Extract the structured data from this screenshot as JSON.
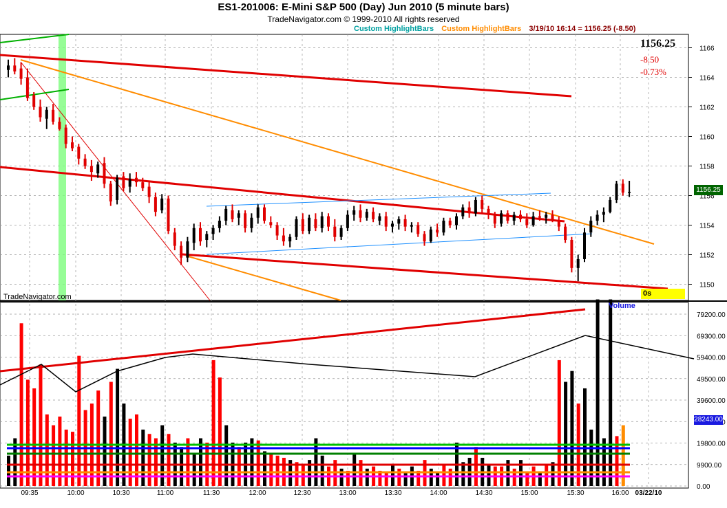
{
  "header": {
    "title": "ES1-201006:  E-Mini S&P 500 (Day) Jun 2010  (5 minute bars)",
    "subtitle": "TradeNavigator.com © 1999-2010 All rights reserved"
  },
  "legend": {
    "item1": "Custom HighlightBars",
    "item2": "Custom HighlightBars",
    "quote": "3/19/10 16:14 = 1156.25 (-8.50)",
    "colors": {
      "item1": "#00a0a0",
      "item2": "#ff8c00",
      "quote": "#8b0000"
    }
  },
  "last": {
    "price": "1156.25",
    "change": "-8.50",
    "percent": "-0.73%"
  },
  "watermark": "TradeNavigator.com",
  "timer": "0s",
  "price_tag": "1156.25",
  "volume_label": "Volume",
  "volume_tag": "28243.00",
  "chart_data": [
    {
      "type": "candlestick",
      "title": "ES1-201006:  E-Mini S&P 500 (Day) Jun 2010  (5 minute bars)",
      "y_ticks": [
        "1166",
        "1164",
        "1162",
        "1160",
        "1158",
        "1156",
        "1154",
        "1152",
        "1150"
      ],
      "ylim": [
        1149,
        1167
      ],
      "x_ticks": [
        "09:35",
        "10:00",
        "10:30",
        "11:00",
        "11:30",
        "12:00",
        "12:30",
        "13:00",
        "13:30",
        "14:00",
        "14:30",
        "15:00",
        "15:30",
        "16:00",
        "03/22/10"
      ],
      "bars": [
        [
          1164.5,
          1165.2,
          1164.0,
          1164.8
        ],
        [
          1164.8,
          1165.3,
          1164.2,
          1164.4
        ],
        [
          1164.6,
          1165.0,
          1163.5,
          1163.9
        ],
        [
          1164.0,
          1164.6,
          1162.4,
          1162.6
        ],
        [
          1162.8,
          1163.0,
          1161.8,
          1162.0
        ],
        [
          1162.0,
          1162.5,
          1161.0,
          1161.3
        ],
        [
          1161.2,
          1162.0,
          1160.5,
          1161.8
        ],
        [
          1161.8,
          1162.2,
          1160.8,
          1161.0
        ],
        [
          1161.0,
          1161.3,
          1160.4,
          1160.5
        ],
        [
          1160.6,
          1160.8,
          1159.2,
          1159.5
        ],
        [
          1159.6,
          1160.0,
          1159.0,
          1159.2
        ],
        [
          1159.3,
          1159.5,
          1158.1,
          1158.5
        ],
        [
          1158.5,
          1158.8,
          1157.8,
          1158.0
        ],
        [
          1158.0,
          1158.4,
          1157.0,
          1157.6
        ],
        [
          1157.5,
          1158.3,
          1157.2,
          1158.1
        ],
        [
          1158.2,
          1158.6,
          1156.5,
          1156.8
        ],
        [
          1156.8,
          1157.0,
          1155.3,
          1155.6
        ],
        [
          1155.7,
          1157.4,
          1155.4,
          1157.2
        ],
        [
          1157.3,
          1157.6,
          1156.3,
          1156.5
        ],
        [
          1156.6,
          1157.5,
          1156.2,
          1157.1
        ],
        [
          1157.2,
          1157.6,
          1156.6,
          1156.9
        ],
        [
          1156.9,
          1157.2,
          1156.3,
          1156.5
        ],
        [
          1156.6,
          1156.9,
          1155.5,
          1155.9
        ],
        [
          1155.9,
          1156.2,
          1154.6,
          1154.9
        ],
        [
          1155.0,
          1156.1,
          1154.8,
          1155.8
        ],
        [
          1155.8,
          1156.0,
          1153.4,
          1153.6
        ],
        [
          1153.5,
          1153.8,
          1152.3,
          1152.6
        ],
        [
          1152.6,
          1152.9,
          1151.3,
          1151.8
        ],
        [
          1151.8,
          1153.2,
          1151.5,
          1152.9
        ],
        [
          1152.8,
          1154.1,
          1152.3,
          1153.8
        ],
        [
          1153.8,
          1154.2,
          1152.6,
          1152.9
        ],
        [
          1153.0,
          1153.6,
          1152.5,
          1153.4
        ],
        [
          1153.4,
          1154.0,
          1153.0,
          1153.8
        ],
        [
          1153.8,
          1154.6,
          1153.5,
          1154.3
        ],
        [
          1154.3,
          1155.3,
          1154.0,
          1155.1
        ],
        [
          1155.0,
          1155.4,
          1154.2,
          1154.4
        ],
        [
          1154.5,
          1155.0,
          1154.0,
          1154.8
        ],
        [
          1154.8,
          1155.0,
          1153.5,
          1153.8
        ],
        [
          1153.8,
          1154.8,
          1153.5,
          1154.5
        ],
        [
          1154.5,
          1155.4,
          1154.1,
          1155.2
        ],
        [
          1155.2,
          1155.4,
          1154.1,
          1154.3
        ],
        [
          1154.2,
          1154.6,
          1153.8,
          1154.0
        ],
        [
          1154.0,
          1154.2,
          1153.0,
          1153.3
        ],
        [
          1153.3,
          1153.8,
          1152.6,
          1152.9
        ],
        [
          1152.9,
          1153.4,
          1152.5,
          1153.2
        ],
        [
          1153.2,
          1154.6,
          1153.0,
          1154.4
        ],
        [
          1154.4,
          1154.8,
          1153.4,
          1153.6
        ],
        [
          1153.6,
          1154.7,
          1153.4,
          1154.5
        ],
        [
          1154.4,
          1154.8,
          1153.6,
          1153.8
        ],
        [
          1153.8,
          1154.9,
          1153.5,
          1154.6
        ],
        [
          1154.6,
          1154.8,
          1153.6,
          1153.9
        ],
        [
          1153.9,
          1154.4,
          1152.9,
          1153.2
        ],
        [
          1153.2,
          1154.0,
          1153.0,
          1153.8
        ],
        [
          1153.8,
          1155.0,
          1153.6,
          1154.7
        ],
        [
          1154.7,
          1155.3,
          1154.3,
          1155.0
        ],
        [
          1155.0,
          1155.4,
          1154.2,
          1154.5
        ],
        [
          1154.5,
          1155.1,
          1154.3,
          1154.9
        ],
        [
          1154.9,
          1155.2,
          1154.2,
          1154.4
        ],
        [
          1154.3,
          1154.8,
          1154.0,
          1154.6
        ],
        [
          1154.6,
          1154.9,
          1153.6,
          1153.9
        ],
        [
          1153.9,
          1154.3,
          1153.5,
          1154.1
        ],
        [
          1154.1,
          1154.6,
          1153.7,
          1154.4
        ],
        [
          1154.4,
          1154.7,
          1153.6,
          1153.9
        ],
        [
          1153.9,
          1154.2,
          1153.5,
          1154.0
        ],
        [
          1154.0,
          1154.2,
          1153.2,
          1153.4
        ],
        [
          1153.4,
          1153.6,
          1152.6,
          1152.9
        ],
        [
          1152.9,
          1153.9,
          1152.8,
          1153.7
        ],
        [
          1153.7,
          1154.1,
          1153.2,
          1153.5
        ],
        [
          1153.5,
          1154.5,
          1153.3,
          1154.3
        ],
        [
          1154.3,
          1154.5,
          1153.8,
          1154.0
        ],
        [
          1154.0,
          1154.8,
          1153.7,
          1154.6
        ],
        [
          1154.6,
          1155.4,
          1154.4,
          1155.2
        ],
        [
          1155.2,
          1155.6,
          1154.5,
          1154.8
        ],
        [
          1154.8,
          1155.9,
          1154.6,
          1155.7
        ],
        [
          1155.7,
          1156.0,
          1154.8,
          1155.1
        ],
        [
          1155.1,
          1155.3,
          1154.4,
          1154.7
        ],
        [
          1154.7,
          1154.9,
          1153.8,
          1154.1
        ],
        [
          1154.1,
          1155.0,
          1153.9,
          1154.8
        ],
        [
          1154.8,
          1155.0,
          1154.1,
          1154.3
        ],
        [
          1154.3,
          1154.9,
          1154.0,
          1154.7
        ],
        [
          1154.7,
          1155.0,
          1154.2,
          1154.4
        ],
        [
          1154.4,
          1154.8,
          1153.8,
          1154.0
        ],
        [
          1154.0,
          1154.9,
          1153.9,
          1154.6
        ],
        [
          1154.6,
          1155.0,
          1154.3,
          1154.5
        ],
        [
          1154.5,
          1154.9,
          1154.1,
          1154.7
        ],
        [
          1154.7,
          1155.0,
          1154.2,
          1154.3
        ],
        [
          1154.3,
          1154.6,
          1153.6,
          1153.9
        ],
        [
          1153.9,
          1154.1,
          1152.8,
          1153.0
        ],
        [
          1153.0,
          1153.2,
          1150.8,
          1151.1
        ],
        [
          1151.1,
          1152.0,
          1150.2,
          1151.7
        ],
        [
          1151.7,
          1153.8,
          1151.5,
          1153.5
        ],
        [
          1153.5,
          1154.6,
          1153.2,
          1154.3
        ],
        [
          1154.3,
          1155.0,
          1154.0,
          1154.7
        ],
        [
          1154.7,
          1155.2,
          1154.2,
          1154.9
        ],
        [
          1154.9,
          1155.9,
          1154.8,
          1155.7
        ],
        [
          1155.7,
          1157.0,
          1155.5,
          1156.8
        ],
        [
          1156.8,
          1157.1,
          1156.0,
          1156.2
        ],
        [
          1156.2,
          1157.0,
          1155.9,
          1156.25
        ]
      ]
    },
    {
      "type": "bar",
      "title": "Volume",
      "y_ticks": [
        "79200.00",
        "69300.00",
        "59400.00",
        "49500.00",
        "39600.00",
        "29700.00",
        "19800.00",
        "9900.00",
        "0.00"
      ],
      "ylim": [
        0,
        83000
      ],
      "values": [
        14000,
        22000,
        75000,
        49000,
        45000,
        56000,
        33000,
        28000,
        32000,
        26000,
        25000,
        60000,
        35000,
        38000,
        44000,
        32000,
        48000,
        54000,
        38000,
        31000,
        33000,
        26000,
        24000,
        22000,
        28000,
        24000,
        20000,
        18000,
        22000,
        15000,
        22000,
        20000,
        58000,
        50000,
        28000,
        20000,
        18000,
        20000,
        22000,
        21000,
        16000,
        15000,
        14000,
        13000,
        12000,
        11000,
        10000,
        12000,
        22000,
        14000,
        9000,
        12000,
        8000,
        7000,
        15000,
        12000,
        8000,
        9000,
        7000,
        6000,
        10000,
        8000,
        6000,
        9000,
        7000,
        12000,
        8000,
        6000,
        10000,
        8000,
        20000,
        11000,
        13000,
        18000,
        13000,
        10000,
        9000,
        9000,
        12000,
        8000,
        12000,
        6000,
        9000,
        6000,
        10000,
        11000,
        58000,
        48000,
        53000,
        38000,
        45000,
        26000,
        86000,
        22000,
        86000,
        23000,
        28000
      ],
      "colors": [
        "black",
        "black",
        "red",
        "red",
        "red",
        "red",
        "red",
        "red",
        "red",
        "red",
        "red",
        "red",
        "red",
        "red",
        "red",
        "black",
        "red",
        "black",
        "black",
        "red",
        "red",
        "black",
        "red",
        "red",
        "black",
        "red",
        "black",
        "black",
        "red",
        "black",
        "black",
        "red",
        "red",
        "red",
        "black",
        "black",
        "red",
        "black",
        "black",
        "red",
        "black",
        "red",
        "red",
        "red",
        "black",
        "red",
        "red",
        "black",
        "black",
        "black",
        "red",
        "red",
        "black",
        "red",
        "black",
        "red",
        "black",
        "red",
        "red",
        "red",
        "black",
        "red",
        "black",
        "black",
        "red",
        "red",
        "black",
        "black",
        "red",
        "red",
        "black",
        "black",
        "black",
        "red",
        "black",
        "black",
        "red",
        "red",
        "black",
        "red",
        "black",
        "red",
        "red",
        "black",
        "red",
        "black",
        "red",
        "black",
        "black",
        "red",
        "black",
        "black",
        "black",
        "black",
        "black",
        "red",
        "orange"
      ],
      "x_ticks": [
        "09:35",
        "10:00",
        "10:30",
        "11:00",
        "11:30",
        "12:00",
        "12:30",
        "13:00",
        "13:30",
        "14:00",
        "14:30",
        "15:00",
        "15:30",
        "16:00",
        "03/22/10"
      ]
    }
  ]
}
